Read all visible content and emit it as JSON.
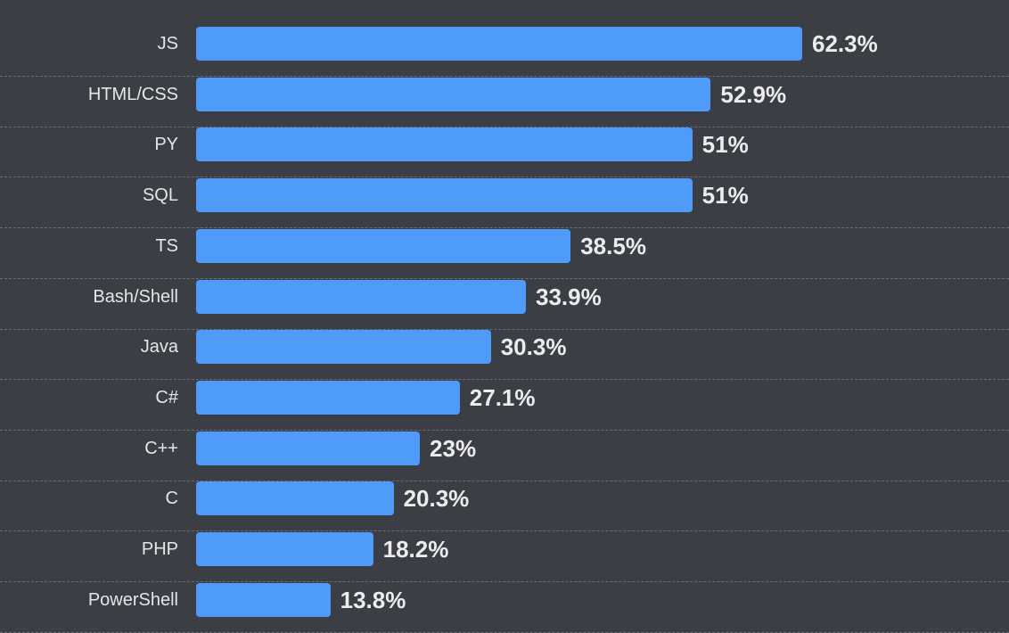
{
  "chart_data": {
    "type": "bar",
    "orientation": "horizontal",
    "title": "",
    "xlabel": "",
    "ylabel": "",
    "categories": [
      "JS",
      "HTML/CSS",
      "PY",
      "SQL",
      "TS",
      "Bash/Shell",
      "Java",
      "C#",
      "C++",
      "C",
      "PHP",
      "PowerShell"
    ],
    "values": [
      62.3,
      52.9,
      51,
      51,
      38.5,
      33.9,
      30.3,
      27.1,
      23,
      20.3,
      18.2,
      13.8
    ],
    "value_labels": [
      "62.3%",
      "52.9%",
      "51%",
      "51%",
      "38.5%",
      "33.9%",
      "30.3%",
      "27.1%",
      "23%",
      "20.3%",
      "18.2%",
      "13.8%"
    ],
    "unit": "%",
    "grid": "dashed row separators",
    "bar_color": "#4f9bfa",
    "background": "#3b3e44"
  }
}
